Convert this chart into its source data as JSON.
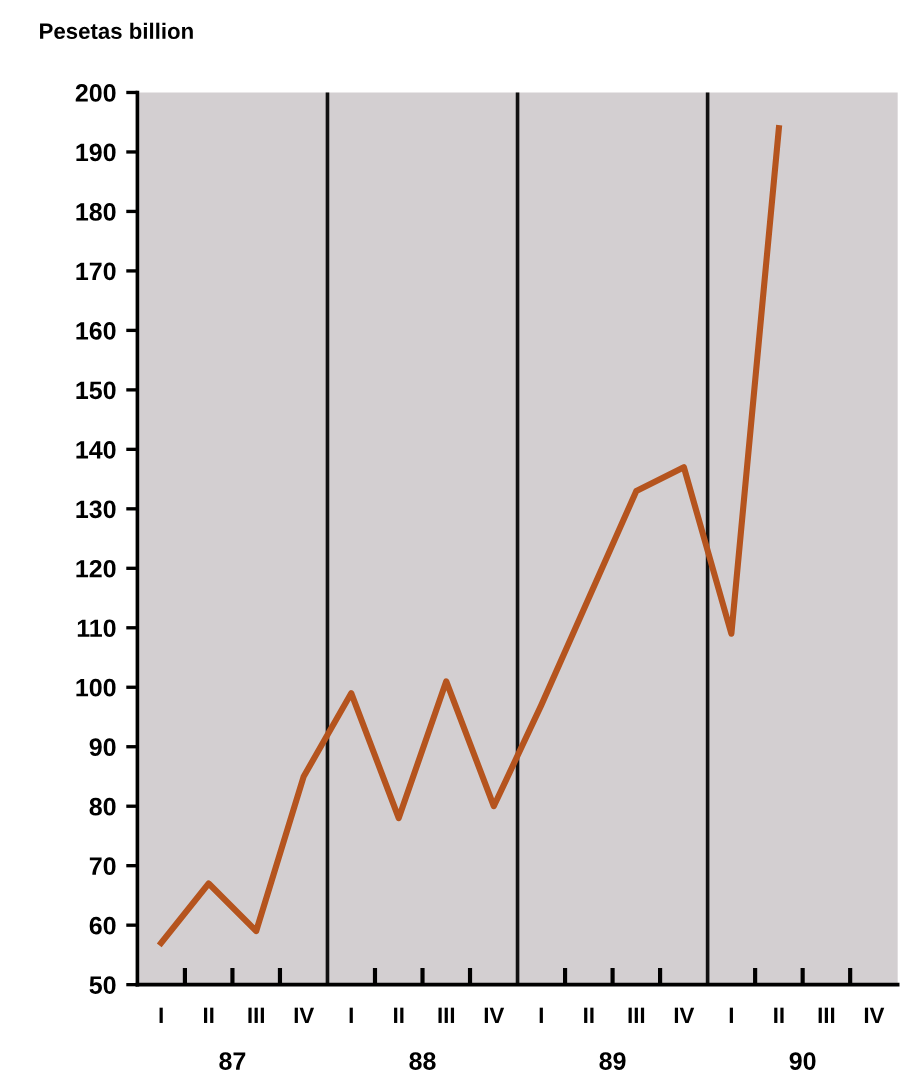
{
  "chart_data": {
    "type": "line",
    "ylabel": "Pesetas billion",
    "categories": [
      "I",
      "II",
      "III",
      "IV",
      "I",
      "II",
      "III",
      "IV",
      "I",
      "II",
      "III",
      "IV",
      "I",
      "II",
      "III",
      "IV"
    ],
    "series": [
      {
        "color": "#b5541e",
        "values": [
          57,
          67,
          59,
          85,
          99,
          78,
          101,
          80,
          97,
          115,
          133,
          137,
          109,
          194,
          null,
          null
        ]
      }
    ],
    "ylim": [
      50,
      200
    ],
    "yticks": [
      50,
      60,
      70,
      80,
      90,
      100,
      110,
      120,
      130,
      140,
      150,
      160,
      170,
      180,
      190,
      200
    ],
    "annotations": [
      "87",
      "88",
      "89",
      "90"
    ],
    "grid": false,
    "legend": false,
    "marker": "none",
    "line_style": "solid"
  }
}
